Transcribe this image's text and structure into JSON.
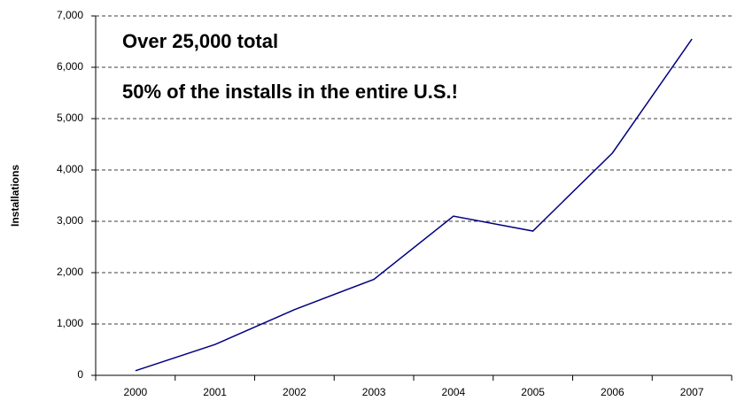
{
  "chart_data": {
    "type": "line",
    "y_label": "Installations",
    "annotations": [
      "Over 25,000 total",
      "50% of the installs in the entire U.S.!"
    ],
    "categories": [
      "2000",
      "2001",
      "2002",
      "2003",
      "2004",
      "2005",
      "2006",
      "2007"
    ],
    "values": [
      90,
      600,
      1280,
      1870,
      3100,
      2810,
      4330,
      6550
    ],
    "color": "#000080",
    "ylim": [
      0,
      7000
    ],
    "yticks": [
      0,
      {
        "value": 1000,
        "label": "1,000"
      },
      {
        "value": 2000,
        "label": "2,000"
      },
      {
        "value": 3000,
        "label": "3,000"
      },
      {
        "value": 4000,
        "label": "4,000"
      },
      {
        "value": 5000,
        "label": "5,000"
      },
      {
        "value": 6000,
        "label": "6,000"
      },
      {
        "value": 7000,
        "label": "7,000"
      }
    ],
    "grid": true
  }
}
